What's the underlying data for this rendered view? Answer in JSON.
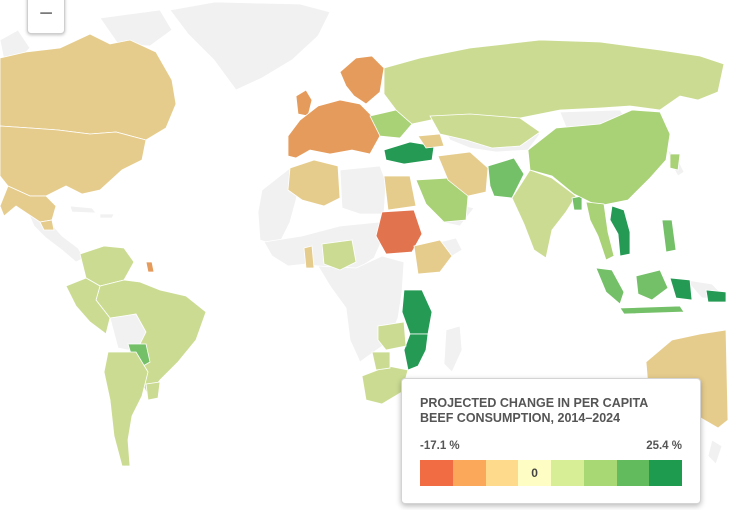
{
  "zoom": {
    "label": "−"
  },
  "legend": {
    "title": "PROJECTED CHANGE IN PER CAPITA BEEF CONSUMPTION, 2014–2024",
    "min_label": "-17.1 %",
    "max_label": "25.4 %",
    "swatches": [
      {
        "color": "#f16c43",
        "label": ""
      },
      {
        "color": "#fba85a",
        "label": ""
      },
      {
        "color": "#fdda8c",
        "label": ""
      },
      {
        "color": "#fefec4",
        "label": "0"
      },
      {
        "color": "#d8ee96",
        "label": ""
      },
      {
        "color": "#a7d874",
        "label": ""
      },
      {
        "color": "#62bc5d",
        "label": ""
      },
      {
        "color": "#1f9b50",
        "label": ""
      }
    ]
  },
  "colors": {
    "no_data": "#f1f1f1",
    "decline_strong": "#e2734f",
    "decline": "#e59b5b",
    "decline_light": "#e6cc8c",
    "growth_light": "#cbdc92",
    "growth": "#a9d176",
    "growth_mid": "#74c068",
    "growth_strong": "#249a54"
  }
}
